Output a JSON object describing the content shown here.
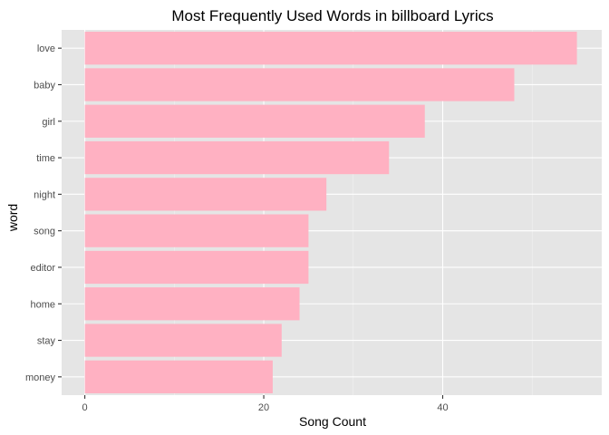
{
  "chart_data": {
    "type": "bar",
    "orientation": "horizontal",
    "title": "Most Frequently Used Words in billboard Lyrics",
    "xlabel": "Song Count",
    "ylabel": "word",
    "categories": [
      "love",
      "baby",
      "girl",
      "time",
      "night",
      "song",
      "editor",
      "home",
      "stay",
      "money"
    ],
    "values": [
      55,
      48,
      38,
      34,
      27,
      25,
      25,
      24,
      22,
      21
    ],
    "xlim": [
      0,
      57
    ],
    "xticks": [
      0,
      20,
      40
    ],
    "bar_color": "#ffb1c2",
    "panel_color": "#e5e5e5",
    "grid": true
  }
}
